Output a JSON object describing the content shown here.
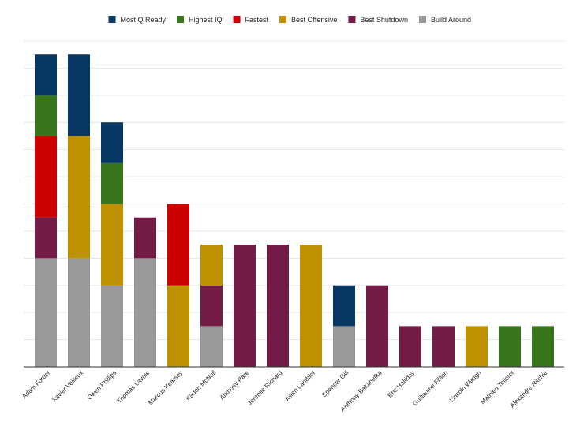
{
  "chart_data": {
    "type": "bar",
    "stacked": true,
    "title": "",
    "xlabel": "",
    "ylabel": "",
    "ylim": [
      0,
      12
    ],
    "grid": true,
    "legend_position": "top",
    "categories": [
      "Adam Fortier",
      "Xavier Veilleux",
      "Owen Phillips",
      "Thomas Lavoie",
      "Marcus Kearsey",
      "Kaden McNeil",
      "Anthony Pare",
      "Jeremie Richard",
      "Julien Lanthier",
      "Spencer Gill",
      "Anthony Bakabutka",
      "Eric Halliday",
      "Guillaume Fillion",
      "Lincoln Waugh",
      "Mathieu Tellefer",
      "Alexandre Ritchie"
    ],
    "series": [
      {
        "name": "Build Around",
        "color": "#999999",
        "values": [
          4,
          4,
          3,
          4,
          0,
          1.5,
          0,
          0,
          0,
          1.5,
          0,
          0,
          0,
          0,
          0,
          0
        ]
      },
      {
        "name": "Best Shutdown",
        "color": "#741b47",
        "values": [
          1.5,
          0,
          0,
          1.5,
          0,
          1.5,
          4.5,
          4.5,
          0,
          0,
          3,
          1.5,
          1.5,
          0,
          0,
          0
        ]
      },
      {
        "name": "Best Offensive",
        "color": "#bf9000",
        "values": [
          0,
          4.5,
          3,
          0,
          3,
          1.5,
          0,
          0,
          4.5,
          0,
          0,
          0,
          0,
          1.5,
          0,
          0
        ]
      },
      {
        "name": "Fastest",
        "color": "#cc0000",
        "values": [
          3,
          0,
          0,
          0,
          3,
          0,
          0,
          0,
          0,
          0,
          0,
          0,
          0,
          0,
          0,
          0
        ]
      },
      {
        "name": "Highest IQ",
        "color": "#38761d",
        "values": [
          1.5,
          0,
          1.5,
          0,
          0,
          0,
          0,
          0,
          0,
          0,
          0,
          0,
          0,
          0,
          1.5,
          1.5
        ]
      },
      {
        "name": "Most Q Ready",
        "color": "#073763",
        "values": [
          1.5,
          3,
          1.5,
          0,
          0,
          0,
          0,
          0,
          0,
          1.5,
          0,
          0,
          0,
          0,
          0,
          0
        ]
      }
    ],
    "legend_order": [
      "Most Q Ready",
      "Highest IQ",
      "Fastest",
      "Best Offensive",
      "Best Shutdown",
      "Build Around"
    ]
  }
}
